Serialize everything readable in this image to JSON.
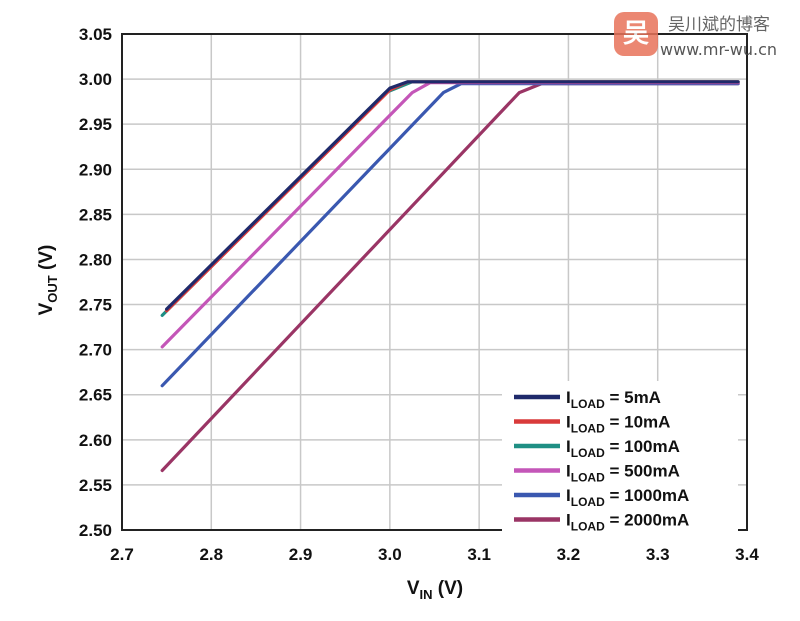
{
  "watermark": {
    "logo_glyph": "吴",
    "name": "吴川斌的博客",
    "url": "www.mr-wu.cn"
  },
  "chart_data": {
    "type": "line",
    "xlabel_main": "V",
    "xlabel_sub": "IN",
    "xlabel_unit": " (V)",
    "ylabel_main": "V",
    "ylabel_sub": "OUT",
    "ylabel_unit": " (V)",
    "xlim": [
      2.7,
      3.4
    ],
    "ylim": [
      2.5,
      3.05
    ],
    "xticks": [
      "2.7",
      "2.8",
      "2.9",
      "3.0",
      "3.1",
      "3.2",
      "3.3",
      "3.4"
    ],
    "yticks": [
      "2.50",
      "2.55",
      "2.60",
      "2.65",
      "2.70",
      "2.75",
      "2.80",
      "2.85",
      "2.90",
      "2.95",
      "3.00",
      "3.05"
    ],
    "grid": true,
    "legend_placement": "bottom-right",
    "series": [
      {
        "name_main": "I",
        "name_sub": "LOAD",
        "name_rest": " = 5mA",
        "color": "#1f2a6b",
        "points": [
          [
            2.75,
            2.745
          ],
          [
            3.0,
            2.99
          ],
          [
            3.02,
            2.997
          ],
          [
            3.39,
            2.997
          ]
        ]
      },
      {
        "name_main": "I",
        "name_sub": "LOAD",
        "name_rest": " = 10mA",
        "color": "#d93a3a",
        "points": [
          [
            2.75,
            2.743
          ],
          [
            3.0,
            2.988
          ],
          [
            3.02,
            2.997
          ],
          [
            3.39,
            2.997
          ]
        ]
      },
      {
        "name_main": "I",
        "name_sub": "LOAD",
        "name_rest": " = 100mA",
        "color": "#1f8f84",
        "points": [
          [
            2.745,
            2.738
          ],
          [
            2.995,
            2.985
          ],
          [
            3.025,
            2.997
          ],
          [
            3.39,
            2.997
          ]
        ]
      },
      {
        "name_main": "I",
        "name_sub": "LOAD",
        "name_rest": " = 500mA",
        "color": "#c456b8",
        "points": [
          [
            2.745,
            2.703
          ],
          [
            3.025,
            2.985
          ],
          [
            3.045,
            2.996
          ],
          [
            3.39,
            2.996
          ]
        ]
      },
      {
        "name_main": "I",
        "name_sub": "LOAD",
        "name_rest": " = 1000mA",
        "color": "#3a58b0",
        "points": [
          [
            2.745,
            2.66
          ],
          [
            3.06,
            2.985
          ],
          [
            3.08,
            2.995
          ],
          [
            3.39,
            2.995
          ]
        ]
      },
      {
        "name_main": "I",
        "name_sub": "LOAD",
        "name_rest": " = 2000mA",
        "color": "#9a3565",
        "points": [
          [
            2.745,
            2.566
          ],
          [
            3.145,
            2.985
          ],
          [
            3.17,
            2.995
          ],
          [
            3.39,
            2.995
          ]
        ]
      }
    ]
  }
}
